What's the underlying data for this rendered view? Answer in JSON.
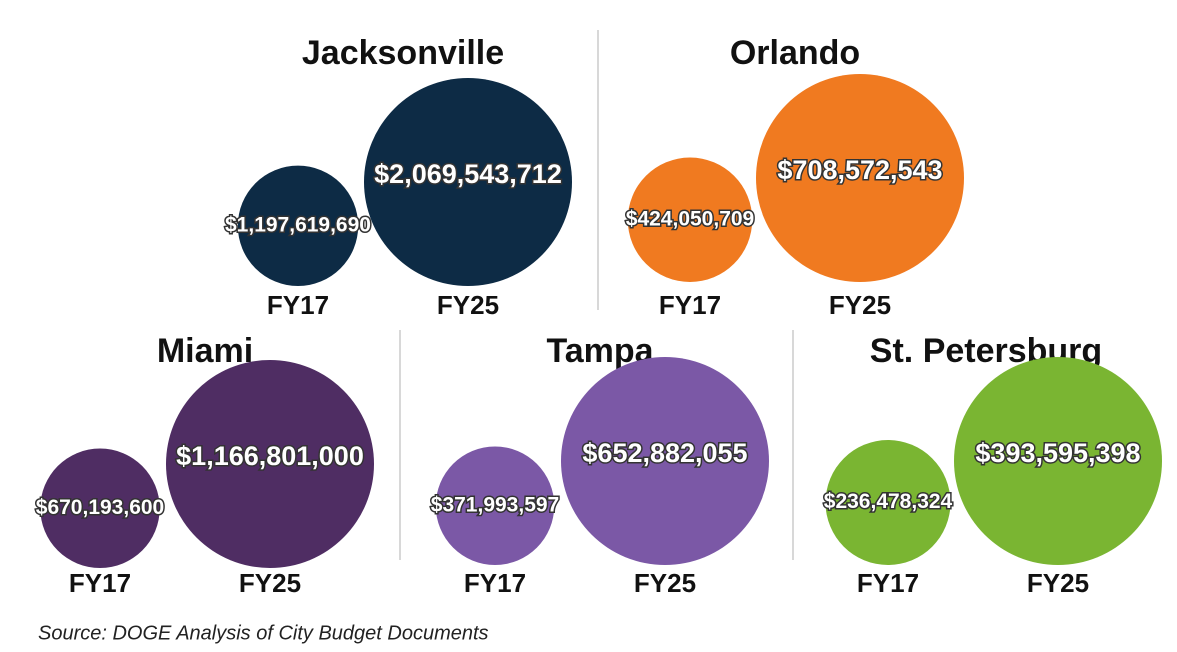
{
  "chart_data": [
    {
      "type": "bubble",
      "title": "Jacksonville",
      "categories": [
        "FY17",
        "FY25"
      ],
      "values": [
        1197619690,
        2069543712
      ],
      "value_labels": [
        "$1,197,619,690",
        "$2,069,543,712"
      ],
      "color": "#0d2b45"
    },
    {
      "type": "bubble",
      "title": "Orlando",
      "categories": [
        "FY17",
        "FY25"
      ],
      "values": [
        424050709,
        708572543
      ],
      "value_labels": [
        "$424,050,709",
        "$708,572,543"
      ],
      "color": "#f07a20"
    },
    {
      "type": "bubble",
      "title": "Miami",
      "categories": [
        "FY17",
        "FY25"
      ],
      "values": [
        670193600,
        1166801000
      ],
      "value_labels": [
        "$670,193,600",
        "$1,166,801,000"
      ],
      "color": "#4f2d63"
    },
    {
      "type": "bubble",
      "title": "Tampa",
      "categories": [
        "FY17",
        "FY25"
      ],
      "values": [
        371993597,
        652882055
      ],
      "value_labels": [
        "$371,993,597",
        "$652,882,055"
      ],
      "color": "#7b58a6"
    },
    {
      "type": "bubble",
      "title": "St. Petersburg",
      "categories": [
        "FY17",
        "FY25"
      ],
      "values": [
        236478324,
        393595398
      ],
      "value_labels": [
        "$236,478,324",
        "$393,595,398"
      ],
      "color": "#7ab532"
    }
  ],
  "source": "Source: DOGE Analysis of City Budget Documents"
}
